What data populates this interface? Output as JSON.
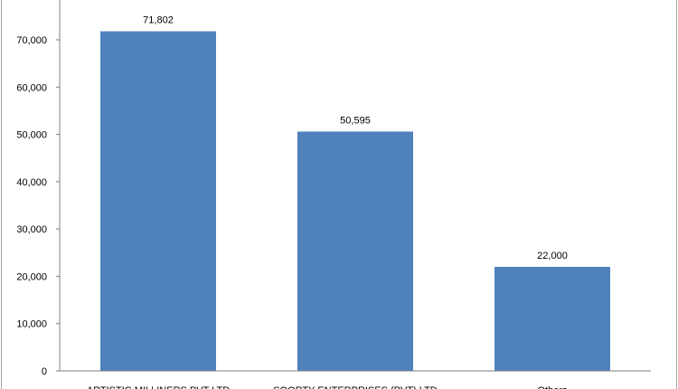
{
  "chart_data": {
    "type": "bar",
    "title": "",
    "xlabel": "",
    "ylabel": "",
    "categories": [
      "ARTISTIC MILLINERS PVT LTD",
      "SOORTY ENTERPRISES (PVT) LTD",
      "Others"
    ],
    "values": [
      71802,
      50595,
      22000
    ],
    "value_labels": [
      "71,802",
      "50,595",
      "22,000"
    ],
    "ylim": [
      0,
      80000
    ],
    "yticks": [
      0,
      10000,
      20000,
      30000,
      40000,
      50000,
      60000,
      70000
    ],
    "ytick_labels": [
      "0",
      "10,000",
      "20,000",
      "30,000",
      "40,000",
      "50,000",
      "60,000",
      "70,000"
    ],
    "grid": false,
    "legend": "none",
    "bar_color": "#4f81bd"
  }
}
